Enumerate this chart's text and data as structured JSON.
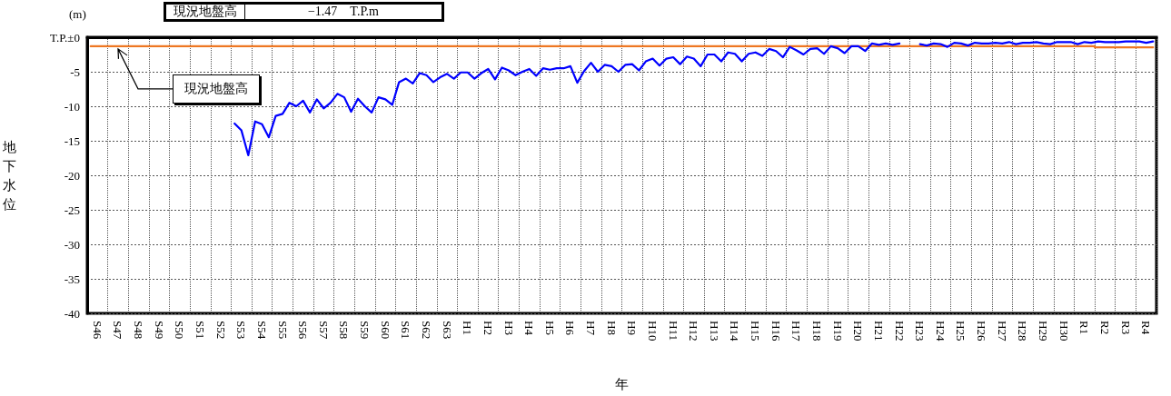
{
  "chart_data": {
    "type": "line",
    "xlabel": "年",
    "ylabel": "地下水位",
    "annotations": [
      "(m)",
      "現況地盤高",
      "−1.47　T.P.m",
      {
        "text": "現況地盤高",
        "x": "S47",
        "y": -1.3
      }
    ],
    "categories": [
      null,
      "S46",
      null,
      null,
      "S47",
      null,
      null,
      "S48",
      null,
      null,
      "S49",
      null,
      null,
      "S50",
      null,
      null,
      "S51",
      null,
      null,
      "S52",
      null,
      null,
      "S53",
      null,
      null,
      "S54",
      null,
      null,
      "S55",
      null,
      null,
      "S56",
      null,
      null,
      "S57",
      null,
      null,
      "S58",
      null,
      null,
      "S59",
      null,
      null,
      "S60",
      null,
      null,
      "S61",
      null,
      null,
      "S62",
      null,
      null,
      "S63",
      null,
      null,
      "H1",
      null,
      null,
      "H2",
      null,
      null,
      "H3",
      null,
      null,
      "H4",
      null,
      null,
      "H5",
      null,
      null,
      "H6",
      null,
      null,
      "H7",
      null,
      null,
      "H8",
      null,
      null,
      "H9",
      null,
      null,
      "H10",
      null,
      null,
      "H11",
      null,
      null,
      "H12",
      null,
      null,
      "H13",
      null,
      null,
      "H14",
      null,
      null,
      "H15",
      null,
      null,
      "H16",
      null,
      null,
      "H17",
      null,
      null,
      "H18",
      null,
      null,
      "H19",
      null,
      null,
      "H20",
      null,
      null,
      "H21",
      null,
      null,
      "H22",
      null,
      null,
      "H23",
      null,
      null,
      "H24",
      null,
      null,
      "H25",
      null,
      null,
      "H26",
      null,
      null,
      "H27",
      null,
      null,
      "H28",
      null,
      null,
      "H29",
      null,
      null,
      "H30",
      null,
      null,
      "R1",
      null,
      null,
      "R2",
      null,
      null,
      "R3",
      null,
      null,
      "R4",
      null
    ],
    "ylim": [
      -40,
      0
    ],
    "yticks": [
      {
        "value": 0,
        "label": "T.P.±0"
      },
      -5,
      -10,
      -15,
      -20,
      -25,
      -30,
      -35,
      -40
    ],
    "grid": true,
    "marker": "none",
    "series": [
      {
        "color": "#0000ff",
        "values": [
          null,
          null,
          null,
          null,
          null,
          null,
          null,
          null,
          null,
          null,
          null,
          null,
          null,
          null,
          null,
          null,
          null,
          null,
          null,
          null,
          null,
          -12.5,
          -13.5,
          -17.1,
          -12.2,
          -12.6,
          -14.5,
          -11.4,
          -11.1,
          -9.5,
          -10.0,
          -9.2,
          -10.9,
          -9.0,
          -10.3,
          -9.5,
          -8.2,
          -8.7,
          -10.8,
          -8.9,
          -10.0,
          -10.9,
          -8.7,
          -9.0,
          -9.8,
          -6.5,
          -6.0,
          -6.7,
          -5.2,
          -5.5,
          -6.5,
          -5.8,
          -5.3,
          -6.0,
          -5.1,
          -5.1,
          -6.0,
          -5.2,
          -4.6,
          -6.1,
          -4.4,
          -4.8,
          -5.5,
          -5.0,
          -4.6,
          -5.6,
          -4.5,
          -4.7,
          -4.5,
          -4.5,
          -4.2,
          -6.6,
          -4.9,
          -3.7,
          -5.0,
          -4.0,
          -4.2,
          -5.0,
          -4.0,
          -3.9,
          -4.8,
          -3.5,
          -3.1,
          -4.1,
          -3.1,
          -2.9,
          -3.9,
          -2.8,
          -3.1,
          -4.2,
          -2.5,
          -2.5,
          -3.5,
          -2.2,
          -2.4,
          -3.5,
          -2.4,
          -2.2,
          -2.7,
          -1.7,
          -2.0,
          -2.9,
          -1.4,
          -1.9,
          -2.5,
          -1.7,
          -1.6,
          -2.4,
          -1.3,
          -1.6,
          -2.3,
          -1.3,
          -1.3,
          -2.0,
          -0.9,
          -1.1,
          -0.9,
          -1.1,
          -0.9,
          null,
          null,
          -1.0,
          -1.2,
          -0.9,
          -1.0,
          -1.4,
          -0.8,
          -0.9,
          -1.2,
          -0.8,
          -0.9,
          -0.9,
          -0.8,
          -0.9,
          -0.7,
          -1.0,
          -0.8,
          -0.8,
          -0.7,
          -0.9,
          -1.0,
          -0.7,
          -0.7,
          -0.7,
          -1.0,
          -0.7,
          -0.8,
          -0.6,
          -0.7,
          -0.7,
          -0.7,
          -0.6,
          -0.6,
          -0.6,
          -0.8,
          -0.6
        ]
      },
      {
        "type": "step",
        "color": "#ee7722",
        "values": [
          -1.3,
          -1.3,
          -1.3,
          -1.3,
          -1.3,
          -1.3,
          -1.3,
          -1.3,
          -1.3,
          -1.3,
          -1.3,
          -1.3,
          -1.3,
          -1.3,
          -1.3,
          -1.3,
          -1.3,
          -1.3,
          -1.3,
          -1.3,
          -1.3,
          -1.3,
          -1.3,
          -1.3,
          -1.3,
          -1.3,
          -1.3,
          -1.3,
          -1.3,
          -1.3,
          -1.3,
          -1.3,
          -1.3,
          -1.3,
          -1.3,
          -1.3,
          -1.3,
          -1.3,
          -1.3,
          -1.3,
          -1.3,
          -1.3,
          -1.3,
          -1.3,
          -1.3,
          -1.3,
          -1.3,
          -1.3,
          -1.3,
          -1.3,
          -1.3,
          -1.3,
          -1.3,
          -1.3,
          -1.3,
          -1.3,
          -1.3,
          -1.3,
          -1.3,
          -1.3,
          -1.3,
          -1.3,
          -1.3,
          -1.3,
          -1.3,
          -1.3,
          -1.3,
          -1.3,
          -1.3,
          -1.3,
          -1.3,
          -1.3,
          -1.3,
          -1.3,
          -1.3,
          -1.3,
          -1.3,
          -1.3,
          -1.3,
          -1.3,
          -1.3,
          -1.3,
          -1.3,
          -1.3,
          -1.3,
          -1.3,
          -1.3,
          -1.3,
          -1.3,
          -1.3,
          -1.3,
          -1.3,
          -1.3,
          -1.3,
          -1.3,
          -1.3,
          -1.3,
          -1.3,
          -1.3,
          -1.3,
          -1.3,
          -1.3,
          -1.3,
          -1.3,
          -1.3,
          -1.3,
          -1.3,
          -1.3,
          -1.3,
          -1.3,
          -1.3,
          -1.3,
          -1.3,
          -1.3,
          -1.3,
          -1.3,
          -1.3,
          -1.3,
          -1.3,
          -1.3,
          -1.3,
          -1.3,
          -1.3,
          -1.3,
          -1.3,
          -1.3,
          -1.3,
          -1.3,
          -1.3,
          -1.3,
          -1.3,
          -1.3,
          -1.3,
          -1.3,
          -1.3,
          -1.3,
          -1.3,
          -1.3,
          -1.3,
          -1.3,
          -1.3,
          -1.3,
          -1.3,
          -1.3,
          -1.3,
          -1.3,
          -1.3,
          -1.47,
          -1.47,
          -1.47,
          -1.47,
          -1.47,
          -1.47,
          -1.47,
          -1.47,
          -1.47
        ]
      }
    ]
  }
}
